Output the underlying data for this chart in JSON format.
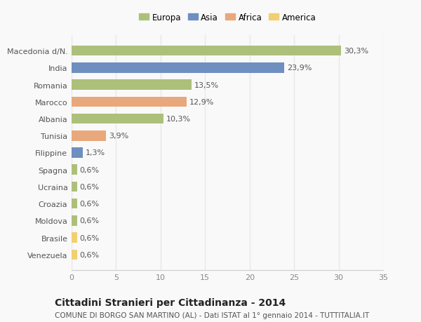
{
  "categories": [
    "Macedonia d/N.",
    "India",
    "Romania",
    "Marocco",
    "Albania",
    "Tunisia",
    "Filippine",
    "Spagna",
    "Ucraina",
    "Croazia",
    "Moldova",
    "Brasile",
    "Venezuela"
  ],
  "values": [
    30.3,
    23.9,
    13.5,
    12.9,
    10.3,
    3.9,
    1.3,
    0.6,
    0.6,
    0.6,
    0.6,
    0.6,
    0.6
  ],
  "labels": [
    "30,3%",
    "23,9%",
    "13,5%",
    "12,9%",
    "10,3%",
    "3,9%",
    "1,3%",
    "0,6%",
    "0,6%",
    "0,6%",
    "0,6%",
    "0,6%",
    "0,6%"
  ],
  "continents": [
    "Europa",
    "Asia",
    "Europa",
    "Africa",
    "Europa",
    "Africa",
    "Asia",
    "Europa",
    "Europa",
    "Europa",
    "Europa",
    "America",
    "America"
  ],
  "continent_colors": {
    "Europa": "#adc07a",
    "Asia": "#6e8fbf",
    "Africa": "#e8a87c",
    "America": "#f0d070"
  },
  "legend_order": [
    "Europa",
    "Asia",
    "Africa",
    "America"
  ],
  "title": "Cittadini Stranieri per Cittadinanza - 2014",
  "subtitle": "COMUNE DI BORGO SAN MARTINO (AL) - Dati ISTAT al 1° gennaio 2014 - TUTTITALIA.IT",
  "xlim": [
    0,
    35
  ],
  "xticks": [
    0,
    5,
    10,
    15,
    20,
    25,
    30,
    35
  ],
  "background_color": "#f9f9f9",
  "grid_color": "#e8e8e8",
  "bar_height": 0.6,
  "label_fontsize": 8,
  "tick_fontsize": 8,
  "ytick_fontsize": 8,
  "title_fontsize": 10,
  "subtitle_fontsize": 7.5
}
